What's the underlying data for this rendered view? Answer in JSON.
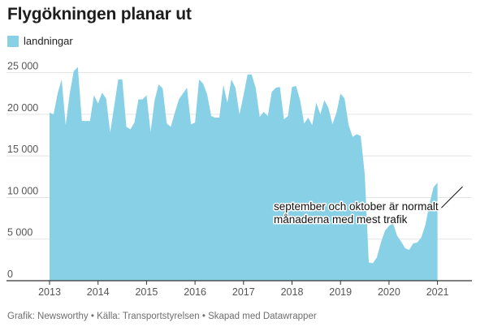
{
  "header": {
    "title": "Flygökningen planar ut"
  },
  "footer": {
    "text": "Grafik: Newsworthy • Källa: Transportstyrelsen • Skapad med Datawrapper"
  },
  "colors": {
    "area": "#88d0e6",
    "grid": "#e3e3e3",
    "axis": "#333333",
    "text": "#1d1d1d"
  },
  "chart_data": {
    "type": "area",
    "title": "Flygökningen planar ut",
    "xlabel": "",
    "ylabel": "",
    "ylim": [
      0,
      27500
    ],
    "y_ticks": [
      0,
      5000,
      10000,
      15000,
      20000,
      25000
    ],
    "y_tick_labels": [
      "0",
      "5 000",
      "10 000",
      "15 000",
      "20 000",
      "25 000"
    ],
    "x_ticks": [
      "2013",
      "2014",
      "2015",
      "2016",
      "2017",
      "2018",
      "2019",
      "2020",
      "2021"
    ],
    "grid": true,
    "legend": {
      "position": "top-left"
    },
    "series": [
      {
        "name": "landningar",
        "start": "2013-01",
        "values": [
          20200,
          20000,
          22500,
          24200,
          18700,
          22500,
          25200,
          25700,
          19200,
          19200,
          19200,
          22300,
          21300,
          22600,
          21900,
          17800,
          21000,
          24200,
          24200,
          18500,
          18200,
          19000,
          21800,
          21800,
          22300,
          17900,
          21700,
          23600,
          23100,
          18900,
          18500,
          20200,
          21800,
          22500,
          23200,
          18800,
          19000,
          24200,
          23700,
          22400,
          19800,
          19600,
          19600,
          23500,
          21400,
          24200,
          23200,
          20000,
          22300,
          24800,
          24800,
          23200,
          19700,
          20300,
          19800,
          22700,
          23200,
          23300,
          19400,
          19800,
          23300,
          23400,
          21700,
          18900,
          19600,
          18700,
          21400,
          20000,
          21700,
          20800,
          18800,
          20200,
          22500,
          21900,
          18700,
          17300,
          17600,
          17400,
          12800,
          2200,
          2100,
          2800,
          4600,
          6000,
          6600,
          6900,
          5400,
          4700,
          3900,
          3700,
          4500,
          4600,
          5200,
          6700,
          9200,
          11200,
          11800
        ]
      }
    ],
    "annotations": [
      {
        "text_lines": [
          "september och oktober är normalt",
          "månaderna med mest trafik"
        ],
        "x": "2021-07",
        "y": 11300
      }
    ]
  }
}
